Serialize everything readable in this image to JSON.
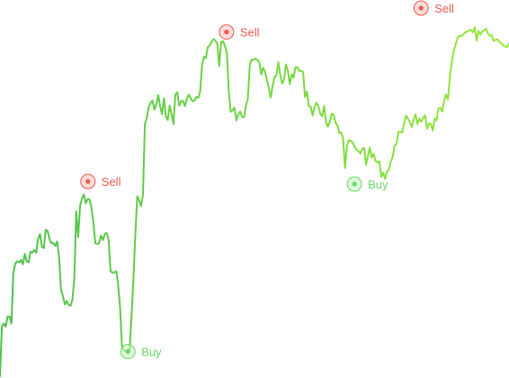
{
  "chart_data": {
    "type": "line",
    "title": "",
    "xlabel": "",
    "ylabel": "",
    "axes_visible": false,
    "grid": false,
    "legend": "none",
    "x_range": [
      0,
      191
    ],
    "ylim": [
      0,
      100
    ],
    "gradient": {
      "start_color": "#4cc24c",
      "end_color": "#9ae93a"
    },
    "values": [
      0,
      13.5,
      14.3,
      13.5,
      16.2,
      16.2,
      14.3,
      28.1,
      30.6,
      31.2,
      30.9,
      31.6,
      30.4,
      33.2,
      31.2,
      30.9,
      33.8,
      33.6,
      34.3,
      33.5,
      37.4,
      38.6,
      35.1,
      34.8,
      39.8,
      39.4,
      37.2,
      36.1,
      36.2,
      35.4,
      36.6,
      32.3,
      23.4,
      21.8,
      19.5,
      20.4,
      19.4,
      19.1,
      20.8,
      26.7,
      44.8,
      37.8,
      46.2,
      48.3,
      49.4,
      47.0,
      48.1,
      48.0,
      45.7,
      41.7,
      36.1,
      35.9,
      36.1,
      38.2,
      37.0,
      38.7,
      38.9,
      36.9,
      28.5,
      28.1,
      28.2,
      28.5,
      24.8,
      18.5,
      8.0,
      7.0,
      6.8,
      6.5,
      7.2,
      16.5,
      26.5,
      38.6,
      48.9,
      47.8,
      46.2,
      49.4,
      68.5,
      70.1,
      73.2,
      74.3,
      74.9,
      72.4,
      73.9,
      76.4,
      73.3,
      71.2,
      75.5,
      70.5,
      69.6,
      73.5,
      71.2,
      68.5,
      76.5,
      77.1,
      73.5,
      74.7,
      74.8,
      73.4,
      75.3,
      76.5,
      75.5,
      74.7,
      74.8,
      75.9,
      75.6,
      77.3,
      84.6,
      86.8,
      86.4,
      89.4,
      89.8,
      90.9,
      91.6,
      91.1,
      90.4,
      84.2,
      90.8,
      91.0,
      89.7,
      87.9,
      77.6,
      71.8,
      72.2,
      73.0,
      69.5,
      71.1,
      71.9,
      70.5,
      70.3,
      73.5,
      75.3,
      84.5,
      86.0,
      85.9,
      86.3,
      85.9,
      85.4,
      82.0,
      83.8,
      82.8,
      80.4,
      78.5,
      75.7,
      78.9,
      81.2,
      81.8,
      85.3,
      81.9,
      79.5,
      80.6,
      84.7,
      83.1,
      79.3,
      82.0,
      81.1,
      83.9,
      83.9,
      82.9,
      83.0,
      82.6,
      75.8,
      77.3,
      73.4,
      73.2,
      70.8,
      73.1,
      74.3,
      73.4,
      71.3,
      70.6,
      73.4,
      69.1,
      67.8,
      69.1,
      71.3,
      71.0,
      68.9,
      68.2,
      66.1,
      66.2,
      64.5,
      56.6,
      62.6,
      64.1,
      63.9,
      63.5,
      62.3,
      61.5,
      61.2,
      60.5,
      61.7,
      62.0,
      57.4,
      59.8,
      62.1,
      59.4,
      60.4,
      58.5,
      58.1,
      58.4,
      54.1,
      55.3,
      53.6,
      55.6,
      56.1,
      58.3,
      59.6,
      62.6,
      63.1,
      66.4,
      66.4,
      66.2,
      68.7,
      70.8,
      69.9,
      69.0,
      67.6,
      69.7,
      71.1,
      68.5,
      70.0,
      69.1,
      70.1,
      70.9,
      67.2,
      68.7,
      68.5,
      66.7,
      70.0,
      69.5,
      72.7,
      72.9,
      71.9,
      74.8,
      76.5,
      75.2,
      81.5,
      85.2,
      88.4,
      90.0,
      91.9,
      92.5,
      92.4,
      92.8,
      93.4,
      93.6,
      93.9,
      94.1,
      93.4,
      94.8,
      91.2,
      93.8,
      92.8,
      93.7,
      94.0,
      94.4,
      93.0,
      92.5,
      92.6,
      91.1,
      91.4,
      91.5,
      90.7,
      90.5,
      89.8,
      89.5,
      89.4,
      90.4
    ],
    "markers": [
      {
        "label": "Sell",
        "type": "sell",
        "index": 33,
        "value": 52.9
      },
      {
        "label": "Buy",
        "type": "buy",
        "index": 48,
        "value": 6.7
      },
      {
        "label": "Sell",
        "type": "sell",
        "index": 85,
        "value": 93.5
      },
      {
        "label": "Buy",
        "type": "buy",
        "index": 133,
        "value": 52.2
      },
      {
        "label": "Sell",
        "type": "sell",
        "index": 158,
        "value": 100
      }
    ],
    "colors": {
      "sell": "#e85a4f",
      "sell_fill": "#f8c4c0",
      "buy": "#6ad86a",
      "buy_fill": "#c8f5c0"
    }
  }
}
